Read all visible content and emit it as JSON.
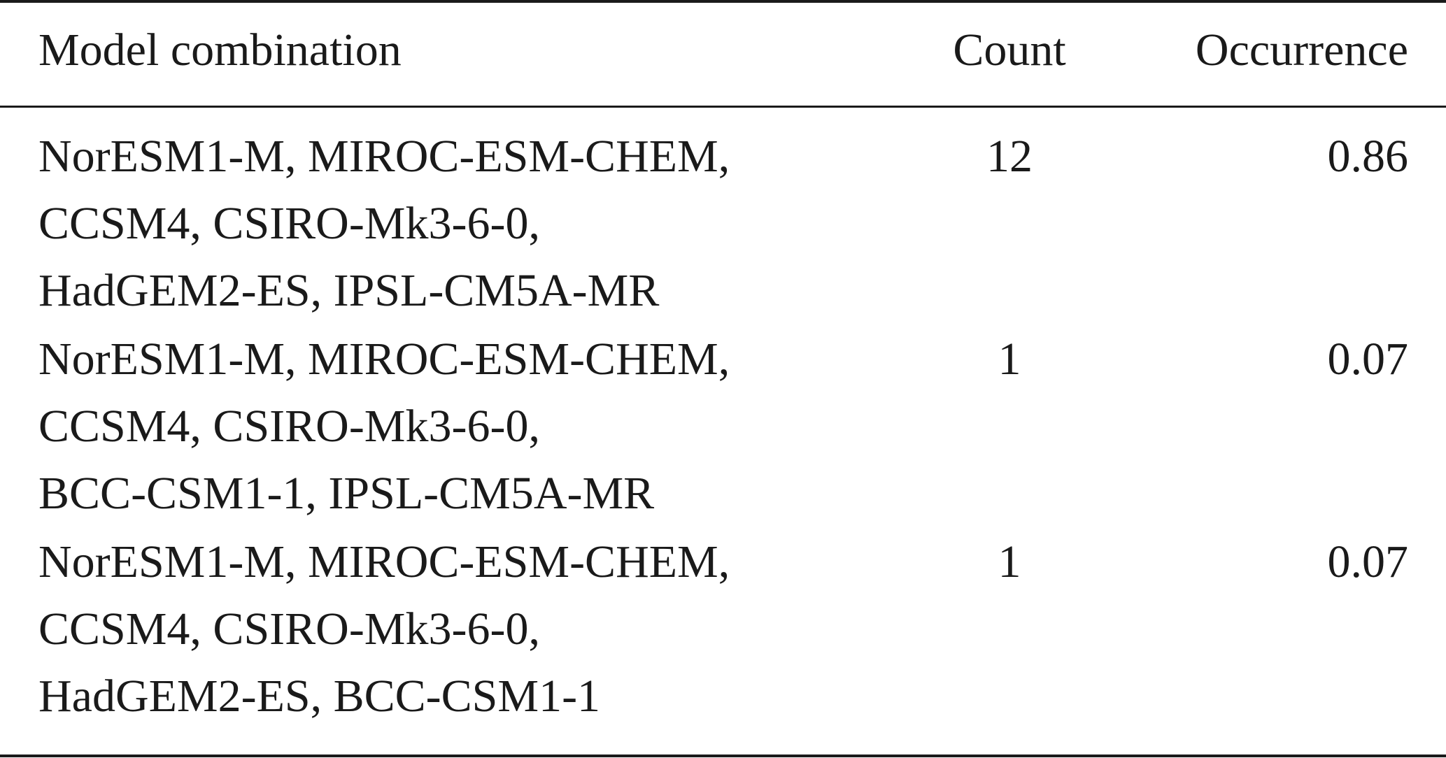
{
  "table": {
    "header": [
      "Model combination",
      "Count",
      "Occurrence"
    ],
    "rows": [
      {
        "model": [
          "NorESM1-M, MIROC-ESM-CHEM,",
          "CCSM4, CSIRO-Mk3-6-0,",
          "HadGEM2-ES, IPSL-CM5A-MR"
        ],
        "count": 12,
        "occurrence": 0.86
      },
      {
        "model": [
          "NorESM1-M, MIROC-ESM-CHEM,",
          "CCSM4, CSIRO-Mk3-6-0,",
          "BCC-CSM1-1, IPSL-CM5A-MR"
        ],
        "count": 1,
        "occurrence": 0.07
      },
      {
        "model": [
          "NorESM1-M, MIROC-ESM-CHEM,",
          "CCSM4, CSIRO-Mk3-6-0,",
          "HadGEM2-ES, BCC-CSM1-1"
        ],
        "count": 1,
        "occurrence": 0.07
      }
    ]
  }
}
